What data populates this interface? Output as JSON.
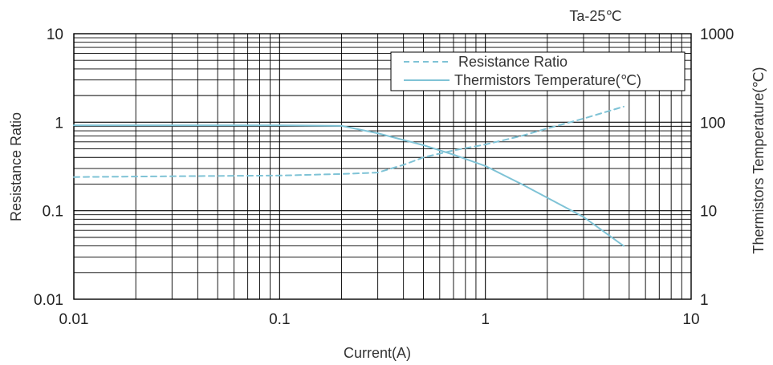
{
  "chart_data": {
    "type": "line",
    "annotation": "Ta-25℃",
    "xlabel": "Current(A)",
    "ylabel_left": "Resistance Ratio",
    "ylabel_right": "Thermistors Temperature(℃)",
    "xscale": "log",
    "yscale": "log",
    "xlim": [
      0.01,
      10
    ],
    "ylim_left": [
      0.01,
      10
    ],
    "ylim_right": [
      1,
      1000
    ],
    "grid": true,
    "legend_position": "top-right",
    "x_tick_labels": [
      "0.01",
      "0.1",
      "1",
      "10"
    ],
    "y_left_tick_labels": [
      "0.01",
      "0.1",
      "1",
      "10"
    ],
    "y_right_tick_labels": [
      "1",
      "10",
      "100",
      "1000"
    ],
    "series": [
      {
        "name": "Resistance Ratio",
        "axis": "left",
        "style": "dashed",
        "color": "#7fc3d6",
        "x": [
          0.01,
          0.03,
          0.1,
          0.2,
          0.3,
          0.4,
          0.5,
          0.7,
          1.0,
          1.5,
          2.0,
          3.0,
          4.7
        ],
        "y": [
          0.24,
          0.245,
          0.25,
          0.26,
          0.27,
          0.33,
          0.4,
          0.48,
          0.56,
          0.7,
          0.85,
          1.1,
          1.5
        ]
      },
      {
        "name": "Thermistors Temperature(℃)",
        "axis": "right",
        "style": "solid",
        "color": "#7fc3d6",
        "x": [
          0.01,
          0.03,
          0.1,
          0.2,
          0.3,
          0.5,
          0.7,
          1.0,
          1.5,
          2.0,
          3.0,
          4.7
        ],
        "y": [
          92,
          92,
          92,
          91,
          75,
          55,
          43,
          32,
          20,
          14,
          8.5,
          4
        ]
      }
    ]
  }
}
